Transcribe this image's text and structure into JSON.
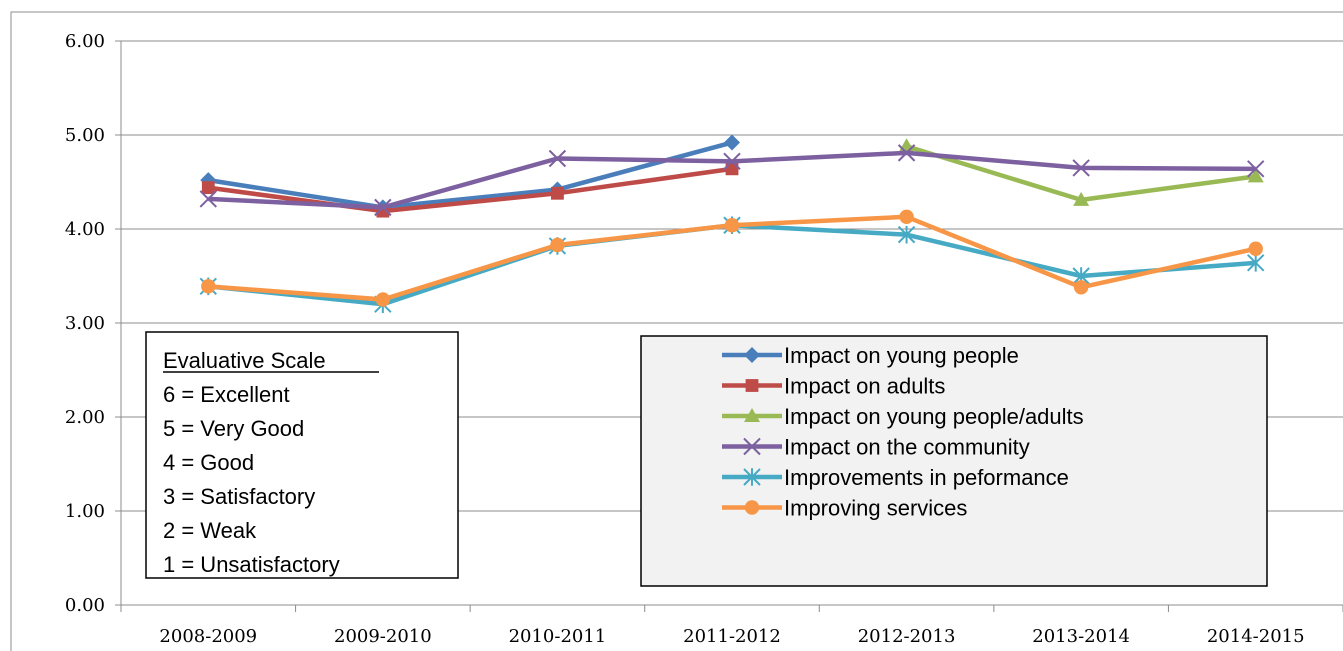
{
  "chart_data": {
    "type": "line",
    "categories": [
      "2008-2009",
      "2009-2010",
      "2010-2011",
      "2011-2012",
      "2012-2013",
      "2013-2014",
      "2014-2015"
    ],
    "ylim": [
      0,
      6
    ],
    "yticks": [
      "0.00",
      "1.00",
      "2.00",
      "3.00",
      "4.00",
      "5.00",
      "6.00"
    ],
    "grid": true,
    "legend_position": "bottom-right",
    "series": [
      {
        "name": "Impact on young people",
        "color": "#4a7ebb",
        "marker": "diamond",
        "values": [
          4.52,
          4.23,
          4.42,
          4.92,
          null,
          null,
          null
        ]
      },
      {
        "name": "Impact on adults",
        "color": "#be4b48",
        "marker": "square",
        "values": [
          4.44,
          4.19,
          4.38,
          4.64,
          null,
          null,
          null
        ]
      },
      {
        "name": "Impact on young people/adults",
        "color": "#98b954",
        "marker": "triangle",
        "values": [
          null,
          null,
          null,
          null,
          4.88,
          4.31,
          4.56
        ]
      },
      {
        "name": "Impact on the community",
        "color": "#7d60a0",
        "marker": "x",
        "values": [
          4.32,
          4.23,
          4.75,
          4.72,
          4.81,
          4.65,
          4.64
        ]
      },
      {
        "name": "Improvements in peformance",
        "color": "#46aac5",
        "marker": "star",
        "values": [
          3.39,
          3.2,
          3.82,
          4.04,
          3.94,
          3.5,
          3.64
        ]
      },
      {
        "name": "Improving services",
        "color": "#f79646",
        "marker": "circle",
        "values": [
          3.39,
          3.25,
          3.83,
          4.04,
          4.13,
          3.38,
          3.79
        ]
      }
    ]
  },
  "evaluative_scale": {
    "title": "Evaluative Scale",
    "items": [
      "6 = Excellent",
      "5 = Very Good",
      "4 = Good",
      "3 = Satisfactory",
      "2 = Weak",
      "1 = Unsatisfactory"
    ]
  }
}
